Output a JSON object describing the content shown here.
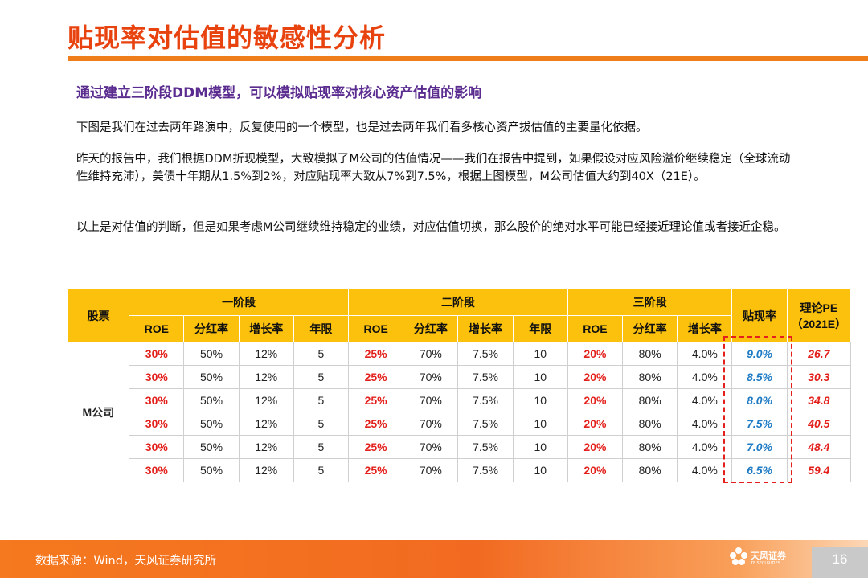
{
  "header": {
    "title": "贴现率对估值的敏感性分析",
    "accent_color": "#ef7d1a",
    "title_color": "#e8420e"
  },
  "subtitle": "通过建立三阶段DDM模型，可以模拟贴现率对核心资产估值的影响",
  "paragraphs": [
    "下图是我们在过去两年路演中，反复使用的一个模型，也是过去两年我们看多核心资产拔估值的主要量化依据。",
    "昨天的报告中，我们根据DDM折现模型，大致模拟了M公司的估值情况——我们在报告中提到，如果假设对应风险溢价继续稳定（全球流动性维持充沛），美债十年期从1.5%到2%，对应贴现率大致从7%到7.5%，根据上图模型，M公司估值大约到40X（21E）。",
    "以上是对估值的判断，但是如果考虑M公司继续维持稳定的业绩，对应估值切换，那么股价的绝对水平可能已经接近理论值或者接近企稳。"
  ],
  "table": {
    "stock_header": "股票",
    "stage1": "一阶段",
    "stage2": "二阶段",
    "stage3": "三阶段",
    "discount_header": "贴现率",
    "pe_header_line1": "理论PE",
    "pe_header_line2": "（2021E）",
    "sub_headers": [
      "ROE",
      "分红率",
      "增长率",
      "年限",
      "ROE",
      "分红率",
      "增长率",
      "年限",
      "ROE",
      "分红率",
      "增长率"
    ],
    "stock": "M公司",
    "rows": [
      [
        "30%",
        "50%",
        "12%",
        "5",
        "25%",
        "70%",
        "7.5%",
        "10",
        "20%",
        "80%",
        "4.0%",
        "9.0%",
        "26.7"
      ],
      [
        "30%",
        "50%",
        "12%",
        "5",
        "25%",
        "70%",
        "7.5%",
        "10",
        "20%",
        "80%",
        "4.0%",
        "8.5%",
        "30.3"
      ],
      [
        "30%",
        "50%",
        "12%",
        "5",
        "25%",
        "70%",
        "7.5%",
        "10",
        "20%",
        "80%",
        "4.0%",
        "8.0%",
        "34.8"
      ],
      [
        "30%",
        "50%",
        "12%",
        "5",
        "25%",
        "70%",
        "7.5%",
        "10",
        "20%",
        "80%",
        "4.0%",
        "7.5%",
        "40.5"
      ],
      [
        "30%",
        "50%",
        "12%",
        "5",
        "25%",
        "70%",
        "7.5%",
        "10",
        "20%",
        "80%",
        "4.0%",
        "7.0%",
        "48.4"
      ],
      [
        "30%",
        "50%",
        "12%",
        "5",
        "25%",
        "70%",
        "7.5%",
        "10",
        "20%",
        "80%",
        "4.0%",
        "6.5%",
        "59.4"
      ]
    ],
    "header_color": "#fcc10d"
  },
  "footer": {
    "source": "数据来源：Wind，天风证券研究所",
    "logo_text": "天风证券",
    "logo_sub": "TF SECURITIES",
    "page_number": "16"
  }
}
